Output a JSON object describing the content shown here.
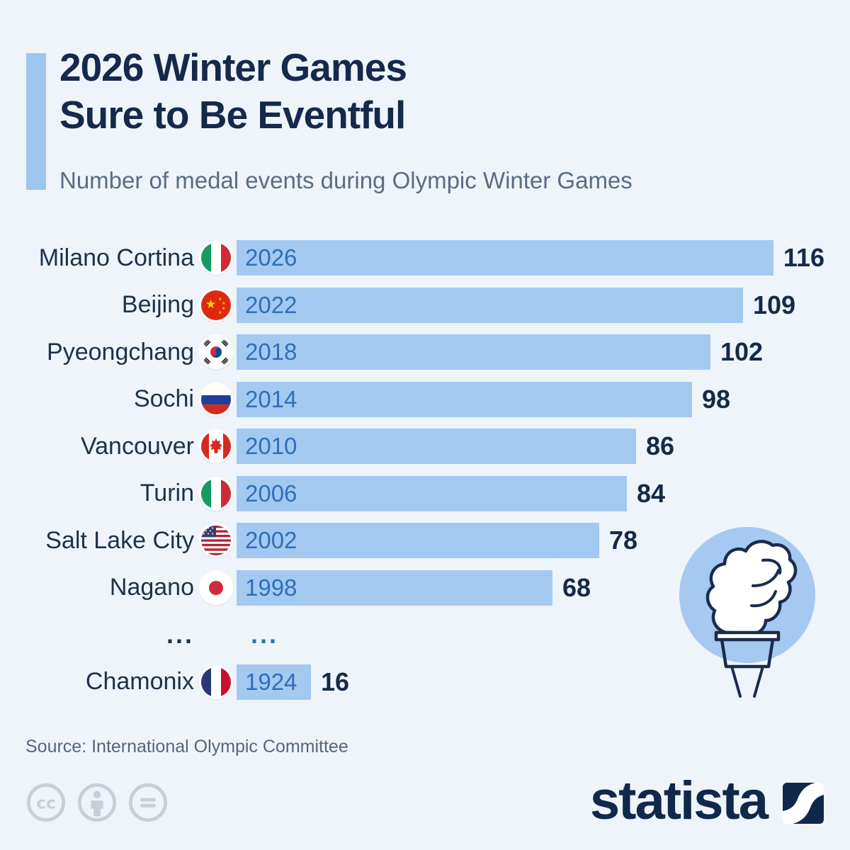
{
  "header": {
    "title_line1": "2026 Winter Games",
    "title_line2": "Sure to Be Eventful",
    "subtitle": "Number of medal events during Olympic Winter Games"
  },
  "chart_data": {
    "type": "bar",
    "orientation": "horizontal",
    "title": "2026 Winter Games Sure to Be Eventful",
    "subtitle": "Number of medal events during Olympic Winter Games",
    "xlim": [
      0,
      116
    ],
    "bar_color": "#a3c9f0",
    "year_label_color": "#2e6fba",
    "value_label_color": "#152a47",
    "rows": [
      {
        "city": "Milano Cortina",
        "flag": "it",
        "flag_name": "italy-flag-icon",
        "year": "2026",
        "value": 116
      },
      {
        "city": "Beijing",
        "flag": "cn",
        "flag_name": "china-flag-icon",
        "year": "2022",
        "value": 109
      },
      {
        "city": "Pyeongchang",
        "flag": "kr",
        "flag_name": "south-korea-flag-icon",
        "year": "2018",
        "value": 102
      },
      {
        "city": "Sochi",
        "flag": "ru",
        "flag_name": "russia-flag-icon",
        "year": "2014",
        "value": 98
      },
      {
        "city": "Vancouver",
        "flag": "ca",
        "flag_name": "canada-flag-icon",
        "year": "2010",
        "value": 86
      },
      {
        "city": "Turin",
        "flag": "it",
        "flag_name": "italy-flag-icon",
        "year": "2006",
        "value": 84
      },
      {
        "city": "Salt Lake City",
        "flag": "us",
        "flag_name": "usa-flag-icon",
        "year": "2002",
        "value": 78
      },
      {
        "city": "Nagano",
        "flag": "jp",
        "flag_name": "japan-flag-icon",
        "year": "1998",
        "value": 68
      },
      {
        "ellipsis": true,
        "label_dots": "...",
        "year_dots": "..."
      },
      {
        "city": "Chamonix",
        "flag": "fr",
        "flag_name": "france-flag-icon",
        "year": "1924",
        "value": 16
      }
    ]
  },
  "decorations": {
    "torch_icon": "olympic-torch-icon"
  },
  "footer": {
    "source": "Source: International Olympic Committee",
    "license_icons": [
      "cc-icon",
      "cc-by-icon",
      "cc-nd-icon"
    ],
    "brand": "statista"
  }
}
